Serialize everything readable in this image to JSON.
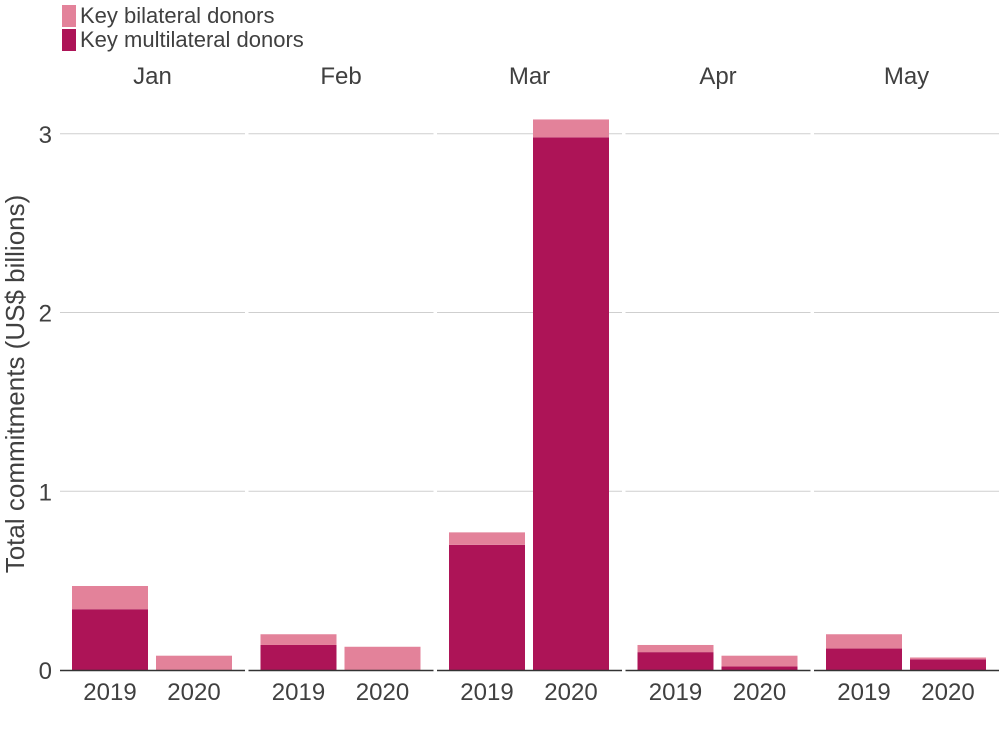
{
  "chart_data": {
    "type": "bar",
    "stacked": true,
    "ylabel": "Total commitments (US$ billions)",
    "ylim": [
      0,
      3.2
    ],
    "yticks": [
      0,
      1,
      2,
      3
    ],
    "facets": [
      "Jan",
      "Feb",
      "Mar",
      "Apr",
      "May"
    ],
    "categories": [
      "2019",
      "2020"
    ],
    "series": [
      {
        "name": "Key multilateral donors",
        "color": "#ad1457",
        "values": [
          [
            0.34,
            0.0
          ],
          [
            0.14,
            0.0
          ],
          [
            0.7,
            2.98
          ],
          [
            0.1,
            0.02
          ],
          [
            0.12,
            0.06
          ]
        ]
      },
      {
        "name": "Key bilateral donors",
        "color": "#e3829a",
        "values": [
          [
            0.13,
            0.08
          ],
          [
            0.06,
            0.13
          ],
          [
            0.07,
            0.1
          ],
          [
            0.04,
            0.06
          ],
          [
            0.08,
            0.01
          ]
        ]
      }
    ],
    "legend": [
      {
        "label": "Key bilateral donors",
        "color": "#e3829a"
      },
      {
        "label": "Key multilateral donors",
        "color": "#ad1457"
      }
    ],
    "legend_position": "top-left",
    "grid": true
  }
}
